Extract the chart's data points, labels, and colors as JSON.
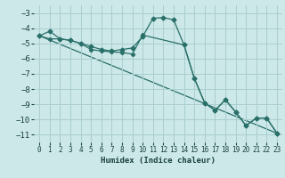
{
  "xlabel": "Humidex (Indice chaleur)",
  "background_color": "#cce8e8",
  "grid_color": "#aacece",
  "line_color": "#2a706a",
  "xlim": [
    -0.5,
    23.5
  ],
  "ylim": [
    -11.5,
    -2.5
  ],
  "yticks": [
    -11,
    -10,
    -9,
    -8,
    -7,
    -6,
    -5,
    -4,
    -3
  ],
  "xticks": [
    0,
    1,
    2,
    3,
    4,
    5,
    6,
    7,
    8,
    9,
    10,
    11,
    12,
    13,
    14,
    15,
    16,
    17,
    18,
    19,
    20,
    21,
    22,
    23
  ],
  "series1": {
    "x": [
      0,
      1,
      2,
      3,
      4,
      5,
      6,
      7,
      8,
      9,
      10,
      11,
      12,
      13,
      14,
      15,
      16,
      17,
      18,
      19,
      20,
      21,
      22,
      23
    ],
    "y": [
      -4.5,
      -4.2,
      -4.7,
      -4.8,
      -5.0,
      -5.2,
      -5.4,
      -5.5,
      -5.4,
      -5.3,
      -4.55,
      -3.35,
      -3.3,
      -3.45,
      -5.1,
      -7.3,
      -8.9,
      -9.4,
      -8.7,
      -9.5,
      -10.4,
      -9.9,
      -9.9,
      -10.9
    ]
  },
  "series2": {
    "x": [
      0,
      1,
      2,
      3,
      4,
      5,
      6,
      7,
      8,
      9,
      10,
      14,
      15,
      16,
      17,
      18,
      19,
      20,
      21,
      22,
      23
    ],
    "y": [
      -4.5,
      -4.7,
      -4.7,
      -4.8,
      -5.0,
      -5.4,
      -5.5,
      -5.55,
      -5.6,
      -5.7,
      -4.45,
      -5.1,
      -7.3,
      -8.9,
      -9.4,
      -8.7,
      -9.5,
      -10.4,
      -9.9,
      -9.9,
      -10.9
    ]
  },
  "series3": {
    "x": [
      0,
      23
    ],
    "y": [
      -4.5,
      -10.9
    ]
  }
}
